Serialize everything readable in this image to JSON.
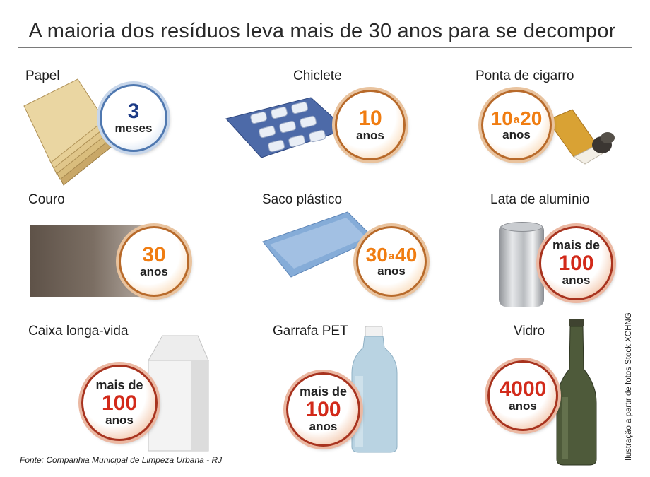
{
  "title": "A maioria dos resíduos leva mais de 30 anos para se decompor",
  "items": [
    {
      "label": "Papel",
      "value": "3",
      "unit": "meses"
    },
    {
      "label": "Chiclete",
      "value": "10",
      "unit": "anos"
    },
    {
      "label": "Ponta de cigarro",
      "value_from": "10",
      "connector": "a",
      "value_to": "20",
      "unit": "anos"
    },
    {
      "label": "Couro",
      "value": "30",
      "unit": "anos"
    },
    {
      "label": "Saco plástico",
      "value_from": "30",
      "connector": "a",
      "value_to": "40",
      "unit": "anos"
    },
    {
      "label": "Lata de alumínio",
      "prefix": "mais de",
      "value": "100",
      "unit": "anos"
    },
    {
      "label": "Caixa longa-vida",
      "prefix": "mais de",
      "value": "100",
      "unit": "anos"
    },
    {
      "label": "Garrafa PET",
      "prefix": "mais de",
      "value": "100",
      "unit": "anos"
    },
    {
      "label": "Vidro",
      "value": "4000",
      "unit": "anos"
    }
  ],
  "footer": "Fonte: Companhia Municipal de Limpeza Urbana - RJ",
  "credit": "Ilustração a partir de fotos Stock.XCHNG",
  "colors": {
    "orange": "#f07d12",
    "red": "#d22a1a",
    "blue": "#1d3b86"
  }
}
